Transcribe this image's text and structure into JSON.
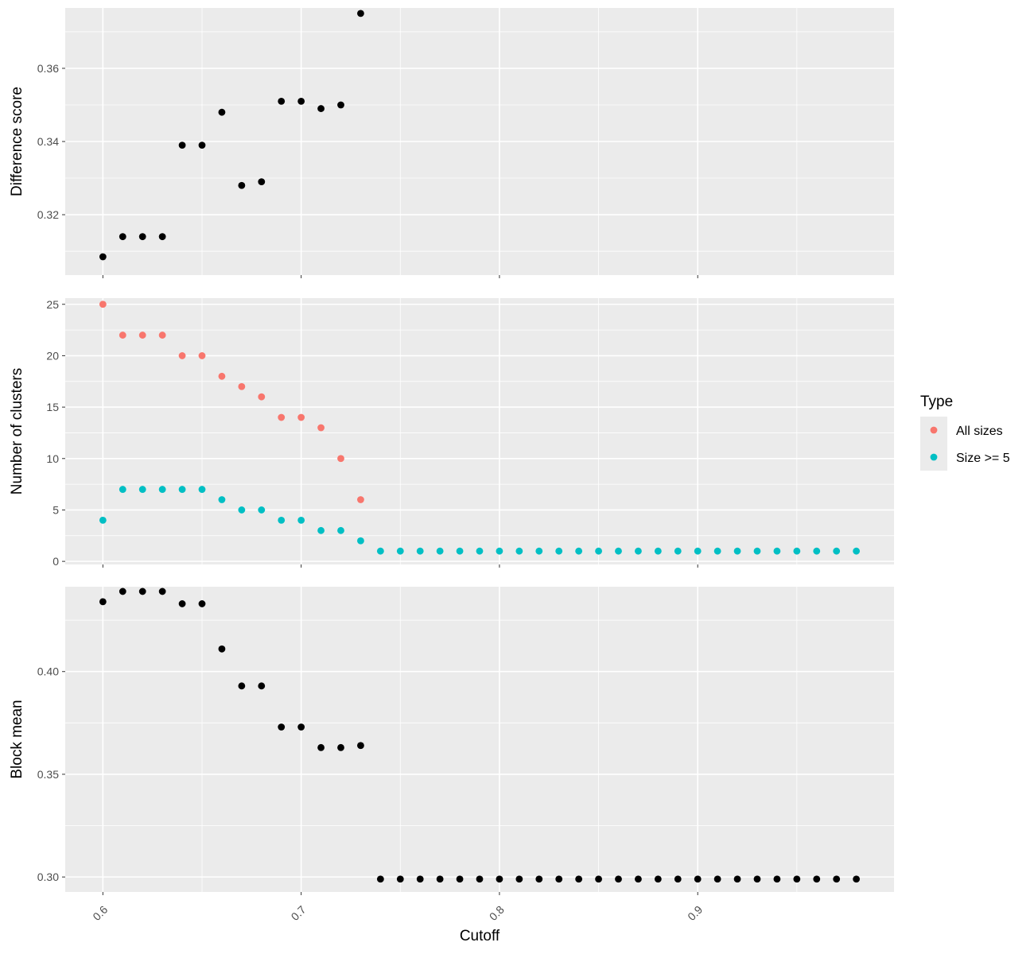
{
  "chart_data": [
    {
      "type": "scatter",
      "ylabel": "Difference score",
      "xlim": [
        0.581,
        0.999
      ],
      "ylim": [
        0.3035,
        0.3765
      ],
      "yticks": [
        0.32,
        0.34,
        0.36
      ],
      "ytick_labels": [
        "0.32",
        "0.34",
        "0.36"
      ],
      "series": [
        {
          "color": "#000000",
          "x": [
            0.6,
            0.61,
            0.62,
            0.63,
            0.64,
            0.65,
            0.66,
            0.67,
            0.68,
            0.69,
            0.7,
            0.71,
            0.72,
            0.73
          ],
          "y": [
            0.3085,
            0.314,
            0.314,
            0.314,
            0.339,
            0.339,
            0.348,
            0.328,
            0.329,
            0.351,
            0.351,
            0.349,
            0.35,
            0.375
          ]
        }
      ]
    },
    {
      "type": "scatter",
      "ylabel": "Number of clusters",
      "xlim": [
        0.581,
        0.999
      ],
      "ylim": [
        -0.3,
        25.6
      ],
      "yticks": [
        0,
        5,
        10,
        15,
        20,
        25
      ],
      "ytick_labels": [
        "0",
        "5",
        "10",
        "15",
        "20",
        "25"
      ],
      "legend": {
        "title": "Type",
        "placement": "right",
        "entries": [
          "All sizes",
          "Size >= 5"
        ]
      },
      "series": [
        {
          "name": "All sizes",
          "color": "#F8766D",
          "x": [
            0.6,
            0.61,
            0.62,
            0.63,
            0.64,
            0.65,
            0.66,
            0.67,
            0.68,
            0.69,
            0.7,
            0.71,
            0.72,
            0.73
          ],
          "y": [
            25,
            22,
            22,
            22,
            20,
            20,
            18,
            17,
            16,
            14,
            14,
            13,
            10,
            6
          ]
        },
        {
          "name": "Size >= 5",
          "color": "#00BFC4",
          "x": [
            0.6,
            0.61,
            0.62,
            0.63,
            0.64,
            0.65,
            0.66,
            0.67,
            0.68,
            0.69,
            0.7,
            0.71,
            0.72,
            0.73,
            0.74,
            0.75,
            0.76,
            0.77,
            0.78,
            0.79,
            0.8,
            0.81,
            0.82,
            0.83,
            0.84,
            0.85,
            0.86,
            0.87,
            0.88,
            0.89,
            0.9,
            0.91,
            0.92,
            0.93,
            0.94,
            0.95,
            0.96,
            0.97,
            0.98
          ],
          "y": [
            4,
            7,
            7,
            7,
            7,
            7,
            6,
            5,
            5,
            4,
            4,
            3,
            3,
            2,
            1,
            1,
            1,
            1,
            1,
            1,
            1,
            1,
            1,
            1,
            1,
            1,
            1,
            1,
            1,
            1,
            1,
            1,
            1,
            1,
            1,
            1,
            1,
            1,
            1
          ]
        }
      ]
    },
    {
      "type": "scatter",
      "ylabel": "Block mean",
      "xlabel": "Cutoff",
      "xlim": [
        0.581,
        0.999
      ],
      "ylim": [
        0.2927,
        0.4413
      ],
      "yticks": [
        0.3,
        0.35,
        0.4
      ],
      "ytick_labels": [
        "0.30",
        "0.35",
        "0.40"
      ],
      "xticks": [
        0.6,
        0.7,
        0.8,
        0.9
      ],
      "xtick_labels": [
        "0.6",
        "0.7",
        "0.8",
        "0.9"
      ],
      "series": [
        {
          "color": "#000000",
          "x": [
            0.6,
            0.61,
            0.62,
            0.63,
            0.64,
            0.65,
            0.66,
            0.67,
            0.68,
            0.69,
            0.7,
            0.71,
            0.72,
            0.73,
            0.74,
            0.75,
            0.76,
            0.77,
            0.78,
            0.79,
            0.8,
            0.81,
            0.82,
            0.83,
            0.84,
            0.85,
            0.86,
            0.87,
            0.88,
            0.89,
            0.9,
            0.91,
            0.92,
            0.93,
            0.94,
            0.95,
            0.96,
            0.97,
            0.98
          ],
          "y": [
            0.434,
            0.439,
            0.439,
            0.439,
            0.433,
            0.433,
            0.411,
            0.393,
            0.393,
            0.373,
            0.373,
            0.363,
            0.363,
            0.364,
            0.299,
            0.299,
            0.299,
            0.299,
            0.299,
            0.299,
            0.299,
            0.299,
            0.299,
            0.299,
            0.299,
            0.299,
            0.299,
            0.299,
            0.299,
            0.299,
            0.299,
            0.299,
            0.299,
            0.299,
            0.299,
            0.299,
            0.299,
            0.299,
            0.299
          ]
        }
      ]
    }
  ]
}
